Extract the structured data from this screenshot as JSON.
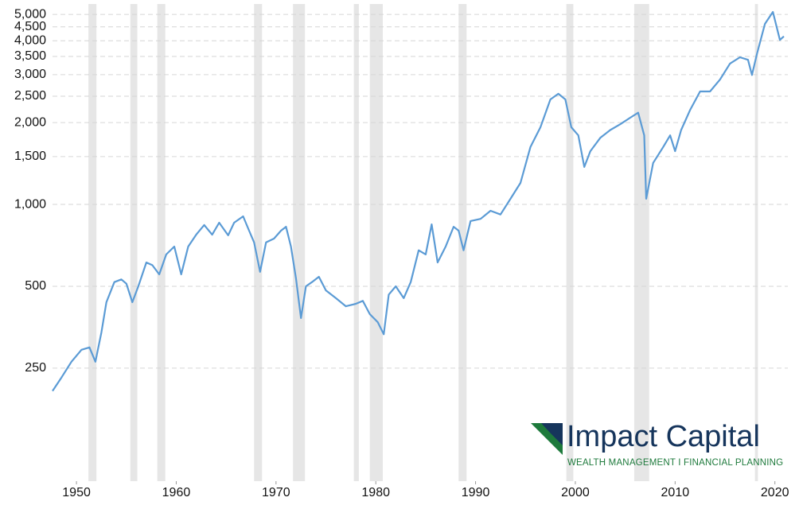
{
  "chart_data": {
    "type": "line",
    "x": [
      1947.6,
      1948.5,
      1949.5,
      1950.5,
      1951.3,
      1951.9,
      1952.5,
      1953,
      1953.8,
      1954.5,
      1955,
      1955.6,
      1956.2,
      1957,
      1957.6,
      1958.3,
      1959,
      1959.8,
      1960.5,
      1961.2,
      1962,
      1962.8,
      1963.6,
      1964.3,
      1965.2,
      1965.8,
      1966.7,
      1967.3,
      1967.8,
      1968.4,
      1969,
      1969.8,
      1970.5,
      1971,
      1971.5,
      1972,
      1972.5,
      1973,
      1973.6,
      1974.3,
      1975,
      1976,
      1977,
      1978,
      1978.7,
      1979.4,
      1980.2,
      1980.8,
      1981.3,
      1982,
      1982.8,
      1983.5,
      1984.3,
      1985,
      1985.6,
      1986.2,
      1987,
      1987.8,
      1988.3,
      1988.8,
      1989.5,
      1990.5,
      1991.5,
      1992.5,
      1993.5,
      1994.5,
      1995.5,
      1996.5,
      1997.5,
      1998.3,
      1999,
      1999.6,
      2000.3,
      2000.9,
      2001.5,
      2002.5,
      2003.5,
      2004.5,
      2005.5,
      2006.3,
      2006.9,
      2007.1,
      2007.8,
      2008.8,
      2009.5,
      2010,
      2010.6,
      2011.5,
      2012.5,
      2013.5,
      2014.5,
      2015.5,
      2016.5,
      2017.3,
      2017.7,
      2018.2,
      2019,
      2019.8,
      2020.5,
      2020.9
    ],
    "values": [
      206,
      231,
      264,
      292,
      298,
      264,
      338,
      437,
      518,
      530,
      511,
      437,
      500,
      612,
      598,
      553,
      655,
      700,
      553,
      700,
      774,
      840,
      774,
      857,
      770,
      857,
      904,
      801,
      725,
      565,
      725,
      749,
      801,
      828,
      700,
      535,
      382,
      500,
      518,
      542,
      483,
      452,
      422,
      431,
      442,
      395,
      369,
      333,
      466,
      500,
      452,
      518,
      678,
      655,
      845,
      612,
      700,
      828,
      801,
      678,
      869,
      885,
      948,
      918,
      1049,
      1200,
      1626,
      1923,
      2434,
      2553,
      2434,
      1923,
      1795,
      1374,
      1570,
      1758,
      1878,
      1972,
      2084,
      2175,
      1795,
      1049,
      1421,
      1626,
      1795,
      1570,
      1878,
      2224,
      2603,
      2603,
      2878,
      3296,
      3477,
      3404,
      2993,
      3573,
      4613,
      5106,
      4028,
      4150
    ],
    "color": "#5b9bd5",
    "recessions": [
      [
        1951.2,
        1952.0
      ],
      [
        1955.4,
        1956.1
      ],
      [
        1958.1,
        1958.9
      ],
      [
        1967.8,
        1968.6
      ],
      [
        1971.7,
        1972.9
      ],
      [
        1977.8,
        1978.3
      ],
      [
        1979.4,
        1980.7
      ],
      [
        1988.3,
        1989.1
      ],
      [
        1999.1,
        1999.8
      ],
      [
        2005.9,
        2007.4
      ],
      [
        2018.0,
        2018.3
      ]
    ],
    "recession_color": "#e6e6e6",
    "xlim": [
      1947.6,
      2021.3
    ],
    "xticks": [
      1950,
      1960,
      1970,
      1980,
      1990,
      2000,
      2010,
      2020
    ],
    "ylim": [
      96,
      5460
    ],
    "log_y": true,
    "yticks": [
      250,
      500,
      {
        "value": 1000,
        "label": "1,000"
      },
      {
        "value": 1500,
        "label": "1,500"
      },
      {
        "value": 2000,
        "label": "2,000"
      },
      {
        "value": 2500,
        "label": "2,500"
      },
      {
        "value": 3000,
        "label": "3,000"
      },
      {
        "value": 3500,
        "label": "3,500"
      },
      {
        "value": 4000,
        "label": "4,000"
      },
      {
        "value": 4500,
        "label": "4,500"
      },
      {
        "value": 5000,
        "label": "5,000"
      }
    ],
    "grid": true
  },
  "logo": {
    "name": "Impact Capital",
    "tagline": "WEALTH MANAGEMENT I FINANCIAL PLANNING"
  }
}
